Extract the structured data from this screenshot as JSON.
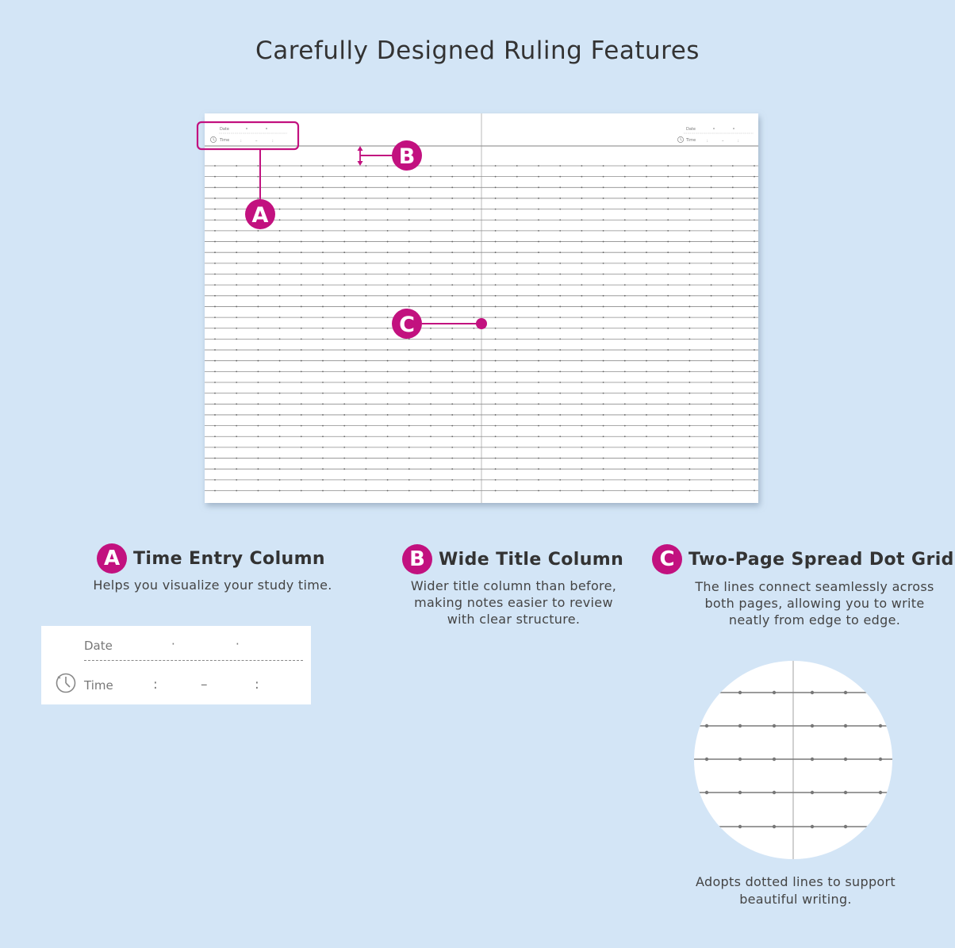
{
  "title": "Carefully Designed Ruling Features",
  "brand_color": "#c2117f",
  "background_color": "#d3e5f6",
  "notebook": {
    "header_date_label": "Date",
    "header_time_label": "Time",
    "clock_icon": "clock-icon",
    "callouts": [
      "A",
      "B",
      "C"
    ]
  },
  "features": [
    {
      "letter": "A",
      "title": "Time Entry Column",
      "description": "Helps you visualize your study time."
    },
    {
      "letter": "B",
      "title": "Wide Title Column",
      "description": "Wider title column than before, making notes easier to review with clear structure."
    },
    {
      "letter": "C",
      "title": "Two-Page Spread Dot Grid",
      "description": "The lines connect seamlessly across both pages, allowing you to write neatly from edge to edge."
    }
  ],
  "detail_card": {
    "date_label": "Date",
    "date_separator": "·",
    "time_label": "Time",
    "time_colon": ":",
    "time_dash": "–",
    "icon": "clock-icon"
  },
  "zoom_caption": "Adopts dotted lines to support beautiful writing."
}
